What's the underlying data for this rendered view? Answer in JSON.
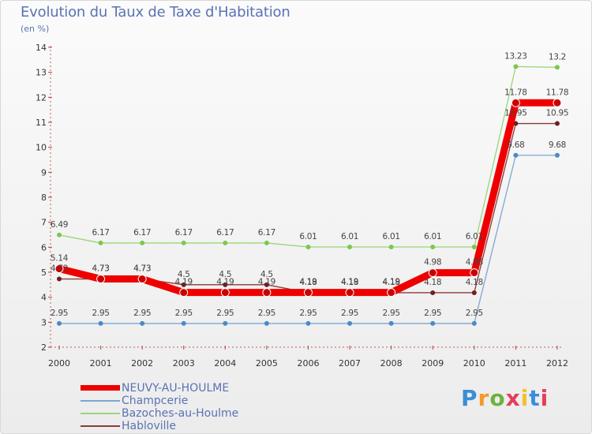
{
  "title": "Evolution du Taux de Taxe d'Habitation",
  "subtitle": "(en %)",
  "logo": {
    "letters": [
      "P",
      "r",
      "o",
      "x",
      "i",
      "t",
      "i"
    ],
    "colors": [
      "#3b8ed8",
      "#f29a2e",
      "#6cb33f",
      "#e83c5a",
      "#f2c12e",
      "#3b8ed8",
      "#e83c5a"
    ]
  },
  "chart_data": {
    "type": "line",
    "title": "Evolution du Taux de Taxe d'Habitation",
    "ylabel": "(en %)",
    "xlabel": "",
    "ylim": [
      2,
      14
    ],
    "yticks": [
      2,
      3,
      4,
      5,
      6,
      7,
      8,
      9,
      10,
      11,
      12,
      13,
      14
    ],
    "categories": [
      "2000",
      "2001",
      "2002",
      "2003",
      "2004",
      "2005",
      "2006",
      "2007",
      "2008",
      "2009",
      "2010",
      "2011",
      "2012"
    ],
    "series": [
      {
        "name": "Champcerie",
        "color": "#7da6d1",
        "marker": "#4a8ac4",
        "values": [
          2.95,
          2.95,
          2.95,
          2.95,
          2.95,
          2.95,
          2.95,
          2.95,
          2.95,
          2.95,
          2.95,
          9.68,
          9.68
        ],
        "labels": [
          "2.95",
          "2.95",
          "2.95",
          "2.95",
          "2.95",
          "2.95",
          "2.95",
          "2.95",
          "2.95",
          "2.95",
          "2.95",
          "9.68",
          "9.68"
        ]
      },
      {
        "name": "Bazoches-au-Houlme",
        "color": "#9ad57a",
        "marker": "#7cc84e",
        "values": [
          6.49,
          6.17,
          6.17,
          6.17,
          6.17,
          6.17,
          6.01,
          6.01,
          6.01,
          6.01,
          6.01,
          13.23,
          13.2
        ],
        "labels": [
          "6.49",
          "6.17",
          "6.17",
          "6.17",
          "6.17",
          "6.17",
          "6.01",
          "6.01",
          "6.01",
          "6.01",
          "6.01",
          "13.23",
          "13.2"
        ]
      },
      {
        "name": "Habloville",
        "color": "#8a3a3a",
        "marker": "#6e1f1f",
        "values": [
          4.73,
          4.73,
          4.73,
          4.5,
          4.5,
          4.5,
          4.18,
          4.18,
          4.18,
          4.18,
          4.18,
          10.95,
          10.95
        ],
        "labels": [
          "4.73",
          "4.73",
          "4.73",
          "4.5",
          "4.5",
          "4.5",
          "4.18",
          "4.18",
          "4.18",
          "4.18",
          "4.18",
          "10.95",
          "10.95"
        ]
      },
      {
        "name": "NEUVY-AU-HOULME",
        "color": "#ee0000",
        "marker": "#cc0000",
        "highlight": true,
        "values": [
          5.14,
          4.73,
          4.73,
          4.19,
          4.19,
          4.19,
          4.19,
          4.19,
          4.19,
          4.98,
          4.98,
          11.78,
          11.78
        ],
        "labels": [
          "5.14",
          "4.73",
          "4.73",
          "4.19",
          "4.19",
          "4.19",
          "4.19",
          "4.19",
          "4.19",
          "4.98",
          "4.98",
          "11.78",
          "11.78"
        ]
      }
    ],
    "legend": [
      "NEUVY-AU-HOULME",
      "Champcerie",
      "Bazoches-au-Houlme",
      "Habloville"
    ]
  }
}
